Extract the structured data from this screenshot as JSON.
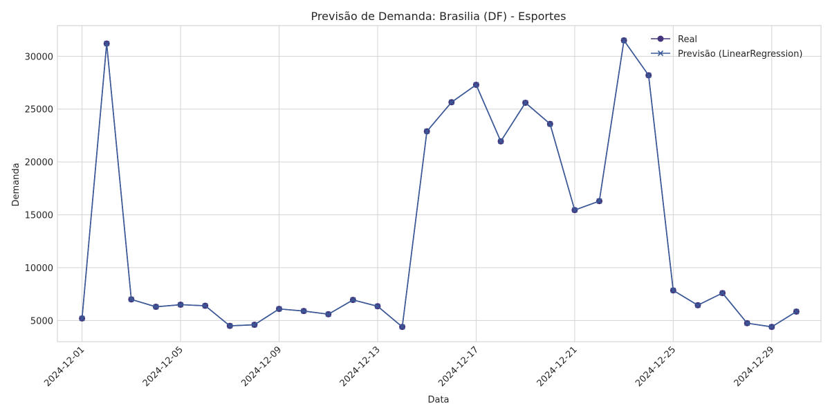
{
  "chart_data": {
    "type": "line",
    "title": "Previsão de Demanda: Brasilia (DF) - Esportes",
    "xlabel": "Data",
    "ylabel": "Demanda",
    "x": [
      "2024-12-01",
      "2024-12-02",
      "2024-12-03",
      "2024-12-04",
      "2024-12-05",
      "2024-12-06",
      "2024-12-07",
      "2024-12-08",
      "2024-12-09",
      "2024-12-10",
      "2024-12-11",
      "2024-12-12",
      "2024-12-13",
      "2024-12-14",
      "2024-12-15",
      "2024-12-16",
      "2024-12-17",
      "2024-12-18",
      "2024-12-19",
      "2024-12-20",
      "2024-12-21",
      "2024-12-22",
      "2024-12-23",
      "2024-12-24",
      "2024-12-25",
      "2024-12-26",
      "2024-12-27",
      "2024-12-28",
      "2024-12-29",
      "2024-12-30"
    ],
    "x_ticks": [
      "2024-12-01",
      "2024-12-05",
      "2024-12-09",
      "2024-12-13",
      "2024-12-17",
      "2024-12-21",
      "2024-12-25",
      "2024-12-29"
    ],
    "xlim": [
      "2024-11-30",
      "2024-12-31"
    ],
    "y_ticks": [
      5000,
      10000,
      15000,
      20000,
      25000,
      30000
    ],
    "ylim": [
      3000,
      32900
    ],
    "grid": true,
    "legend_position": "top-right",
    "series": [
      {
        "name": "Real",
        "marker": "circle",
        "color": "#45347c",
        "values": [
          5200,
          31200,
          7000,
          6300,
          6500,
          6400,
          4500,
          4600,
          6100,
          5900,
          5600,
          6950,
          6350,
          4400,
          22900,
          25650,
          27300,
          21950,
          25600,
          23600,
          15450,
          16300,
          31500,
          28200,
          7850,
          6450,
          7600,
          4750,
          4400,
          5850
        ]
      },
      {
        "name": "Previsão (LinearRegression)",
        "marker": "x",
        "color": "#3a5a98",
        "values": [
          5200,
          31200,
          7000,
          6300,
          6500,
          6400,
          4500,
          4600,
          6100,
          5900,
          5600,
          6950,
          6350,
          4400,
          22900,
          25650,
          27300,
          21950,
          25600,
          23600,
          15450,
          16300,
          31500,
          28200,
          7850,
          6450,
          7600,
          4750,
          4400,
          5850
        ]
      }
    ]
  }
}
